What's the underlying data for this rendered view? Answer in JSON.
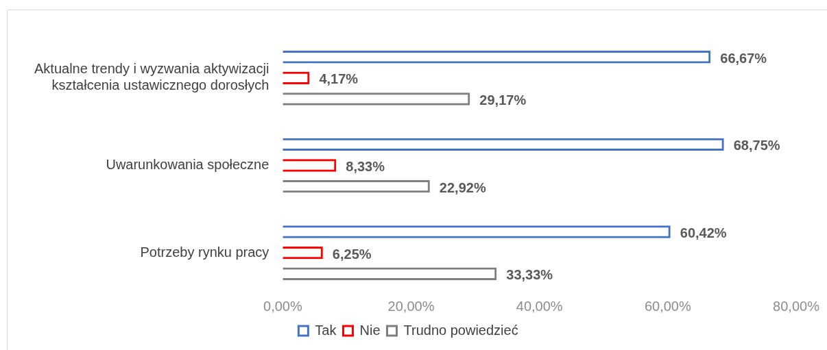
{
  "chart_data": {
    "type": "bar",
    "orientation": "horizontal",
    "categories": [
      "Aktualne trendy i wyzwania aktywizacji kształcenia ustawicznego dorosłych",
      "Uwarunkowania społeczne",
      "Potrzeby rynku pracy"
    ],
    "series": [
      {
        "name": "Tak",
        "color": "#4472c4",
        "values": [
          66.67,
          68.75,
          60.42
        ],
        "value_labels": [
          "66,67%",
          "68,75%",
          "60,42%"
        ]
      },
      {
        "name": "Nie",
        "color": "#ff0000",
        "values": [
          4.17,
          8.33,
          6.25
        ],
        "value_labels": [
          "4,17%",
          "8,33%",
          "6,25%"
        ]
      },
      {
        "name": "Trudno powiedzieć",
        "color": "#7f7f7f",
        "values": [
          29.17,
          22.92,
          33.33
        ],
        "value_labels": [
          "29,17%",
          "22,92%",
          "33,33%"
        ]
      }
    ],
    "xlim": [
      0,
      80
    ],
    "xticks": [
      {
        "value": 0,
        "label": "0,00%"
      },
      {
        "value": 20,
        "label": "20,00%"
      },
      {
        "value": 40,
        "label": "40,00%"
      },
      {
        "value": 60,
        "label": "60,00%"
      },
      {
        "value": 80,
        "label": "80,00%"
      }
    ],
    "grid": false,
    "legend": "bottom"
  }
}
